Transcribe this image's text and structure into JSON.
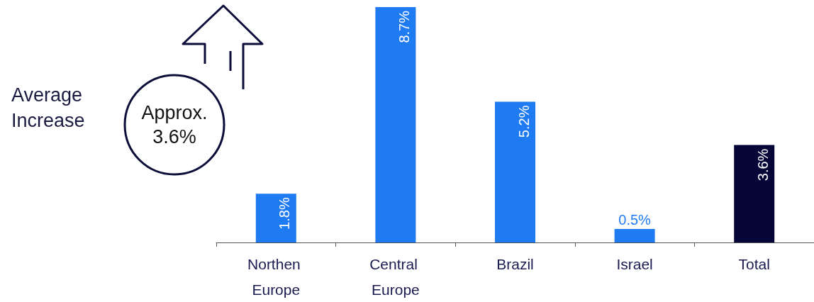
{
  "chart_data": {
    "type": "bar",
    "categories": [
      "Northen Europe",
      "Central Europe",
      "Brazil",
      "Israel",
      "Total"
    ],
    "values": [
      1.8,
      8.7,
      5.2,
      0.5,
      3.6
    ],
    "colors": [
      "#1f7bf2",
      "#1f7bf2",
      "#1f7bf2",
      "#1f7bf2",
      "#050538"
    ],
    "value_labels": [
      "1.8%",
      "8.7%",
      "5.2%",
      "0.5%",
      "3.6%"
    ],
    "annotations": [
      "Average Increase",
      "Approx. 3.6%"
    ]
  }
}
